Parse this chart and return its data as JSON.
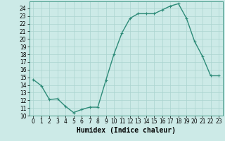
{
  "xlabel": "Humidex (Indice chaleur)",
  "x": [
    0,
    1,
    2,
    3,
    4,
    5,
    6,
    7,
    8,
    9,
    10,
    11,
    12,
    13,
    14,
    15,
    16,
    17,
    18,
    19,
    20,
    21,
    22,
    23
  ],
  "y": [
    14.7,
    13.9,
    12.1,
    12.2,
    11.2,
    10.4,
    10.8,
    11.1,
    11.1,
    14.6,
    18.0,
    20.8,
    22.7,
    23.3,
    23.3,
    23.3,
    23.8,
    24.3,
    24.6,
    22.7,
    19.7,
    17.7,
    15.2,
    15.2
  ],
  "line_color": "#2d8b78",
  "marker": "+",
  "marker_color": "#2d8b78",
  "bg_color": "#cceae7",
  "grid_color": "#aad4d0",
  "ylim": [
    10,
    24.9
  ],
  "xlim": [
    -0.5,
    23.5
  ],
  "yticks": [
    10,
    11,
    12,
    13,
    14,
    15,
    16,
    17,
    18,
    19,
    20,
    21,
    22,
    23,
    24
  ],
  "xticks": [
    0,
    1,
    2,
    3,
    4,
    5,
    6,
    7,
    8,
    9,
    10,
    11,
    12,
    13,
    14,
    15,
    16,
    17,
    18,
    19,
    20,
    21,
    22,
    23
  ],
  "tick_fontsize": 5.5,
  "label_fontsize": 7.0,
  "line_width": 1.0,
  "marker_size": 3.5
}
